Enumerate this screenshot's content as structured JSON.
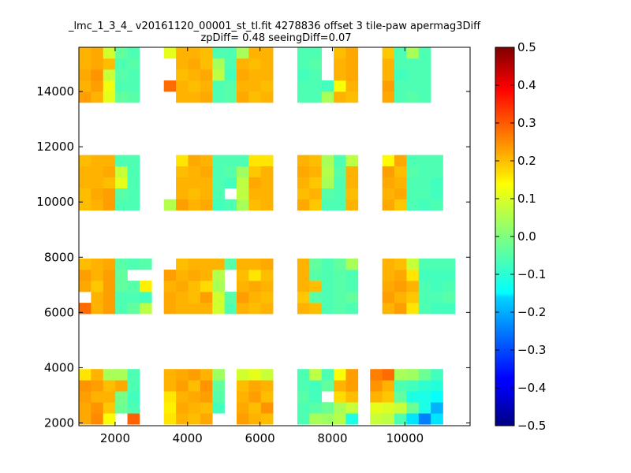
{
  "chart_data": {
    "type": "heatmap",
    "title_line1": "_lmc_1_3_4_ v20161120_00001_st_tl.fit 4278836 offset 3 tile-paw apermag3Diff",
    "title_line2": "zpDiff= 0.48 seeingDiff=0.07",
    "xlim": [
      1000,
      11800
    ],
    "ylim": [
      1900,
      15600
    ],
    "xticks": [
      2000,
      4000,
      6000,
      8000,
      10000
    ],
    "yticks": [
      2000,
      4000,
      6000,
      8000,
      10000,
      12000,
      14000
    ],
    "color_range": [
      -0.5,
      0.5
    ],
    "colorbar_ticks": [
      "0.5",
      "0.4",
      "0.3",
      "0.2",
      "0.1",
      "0.0",
      "−0.1",
      "−0.2",
      "−0.3",
      "−0.4",
      "−0.5"
    ],
    "colormap": "jet",
    "grid": false,
    "cell_width": 335,
    "cell_height": 400,
    "x_starts": [
      1000,
      1335,
      1670,
      2005,
      2340,
      2675,
      3010,
      3345,
      3680,
      4015,
      4350,
      4685,
      5020,
      5355,
      5690,
      6025,
      6360,
      6695,
      7030,
      7365,
      7700,
      8035,
      8370,
      8705,
      9040,
      9375,
      9710,
      10045,
      10380,
      10715,
      11050,
      11385
    ],
    "bands": [
      {
        "y_start": 1950,
        "values": [
          [
            0.21,
            0.24,
            0.12,
            null,
            0.28,
            null,
            0.15,
            0.2,
            0.19,
            0.21,
            null,
            null,
            0.22,
            0.2,
            0.19,
            -0.05,
            0.04,
            0.03,
            0.05,
            -0.1,
            0.07,
            0.06,
            -0.05,
            -0.15,
            -0.25,
            -0.15
          ],
          [
            0.21,
            0.23,
            0.18,
            -0.02,
            -0.05,
            null,
            0.14,
            0.21,
            0.2,
            0.19,
            -0.06,
            null,
            0.21,
            0.19,
            0.23,
            -0.05,
            -0.04,
            -0.02,
            0.04,
            0.07,
            0.1,
            0.09,
            0.07,
            -0.02,
            -0.1,
            -0.2
          ],
          [
            0.22,
            0.2,
            0.2,
            -0.01,
            -0.06,
            null,
            0.15,
            0.2,
            0.21,
            0.22,
            -0.04,
            null,
            0.2,
            0.22,
            0.19,
            -0.04,
            -0.06,
            null,
            0.16,
            0.19,
            0.2,
            0.18,
            -0.03,
            -0.1,
            -0.1,
            -0.12
          ],
          [
            0.23,
            0.22,
            0.19,
            0.21,
            -0.05,
            null,
            0.2,
            0.22,
            0.19,
            0.23,
            -0.03,
            null,
            0.19,
            0.21,
            0.2,
            -0.05,
            -0.06,
            -0.03,
            0.2,
            0.22,
            0.23,
            0.2,
            -0.05,
            -0.06,
            -0.08,
            -0.09
          ],
          [
            0.15,
            0.2,
            0.04,
            0.04,
            -0.05,
            null,
            0.2,
            0.21,
            0.22,
            0.2,
            0.03,
            null,
            0.08,
            0.1,
            0.07,
            -0.05,
            0.06,
            -0.05,
            0.12,
            0.22,
            0.25,
            0.27,
            0.04,
            0.03,
            -0.02,
            -0.06
          ]
        ]
      },
      {
        "y_start": 5950,
        "values": [
          [
            0.27,
            0.2,
            0.22,
            -0.05,
            -0.03,
            0.06,
            0.21,
            0.2,
            0.2,
            0.2,
            0.08,
            -0.05,
            0.2,
            0.19,
            0.2,
            0.2,
            0.19,
            -0.05,
            -0.04,
            -0.05,
            0.2,
            0.22,
            0.15,
            -0.05,
            -0.06,
            -0.06
          ],
          [
            null,
            0.2,
            0.22,
            -0.05,
            -0.05,
            -0.06,
            0.21,
            0.2,
            0.19,
            0.22,
            0.08,
            -0.04,
            0.22,
            0.2,
            0.19,
            0.18,
            -0.04,
            -0.05,
            -0.04,
            -0.03,
            0.22,
            0.2,
            0.18,
            -0.05,
            -0.05,
            -0.04
          ],
          [
            0.21,
            0.18,
            0.22,
            -0.03,
            -0.04,
            0.14,
            0.2,
            0.21,
            0.19,
            0.16,
            0.04,
            null,
            0.2,
            0.21,
            0.2,
            0.2,
            0.19,
            -0.05,
            -0.04,
            -0.05,
            0.21,
            0.22,
            0.2,
            -0.05,
            -0.06,
            -0.05
          ],
          [
            0.22,
            0.2,
            0.22,
            -0.03,
            null,
            null,
            0.22,
            0.2,
            0.21,
            0.2,
            0.05,
            null,
            0.19,
            0.15,
            0.19,
            0.2,
            -0.04,
            -0.05,
            -0.04,
            -0.05,
            0.2,
            0.21,
            0.15,
            -0.06,
            -0.06,
            -0.06
          ],
          [
            0.19,
            0.2,
            0.21,
            -0.04,
            -0.05,
            -0.04,
            null,
            0.19,
            0.2,
            0.2,
            0.2,
            -0.04,
            0.2,
            0.2,
            0.21,
            0.2,
            -0.03,
            -0.05,
            -0.03,
            0.04,
            0.2,
            0.19,
            0.07,
            -0.05,
            -0.05,
            -0.05
          ]
        ]
      },
      {
        "y_start": 9700,
        "values": [
          [
            0.19,
            0.2,
            0.22,
            -0.05,
            -0.05,
            0.05,
            0.22,
            0.2,
            0.21,
            -0.06,
            -0.05,
            0.04,
            0.19,
            0.2,
            0.21,
            0.18,
            -0.05,
            -0.05,
            0.2,
            0.21,
            0.18,
            -0.05,
            -0.06,
            -0.05
          ],
          [
            0.19,
            0.21,
            0.22,
            -0.04,
            -0.05,
            null,
            0.2,
            0.19,
            0.2,
            -0.05,
            null,
            0.06,
            0.2,
            0.2,
            0.19,
            0.2,
            -0.04,
            -0.05,
            0.19,
            0.2,
            0.21,
            -0.05,
            -0.05,
            -0.06
          ],
          [
            0.2,
            0.2,
            0.19,
            0.1,
            -0.05,
            null,
            0.2,
            0.2,
            0.2,
            -0.05,
            -0.06,
            0.06,
            0.21,
            0.2,
            0.2,
            0.18,
            0.04,
            -0.05,
            0.2,
            0.21,
            0.2,
            -0.05,
            -0.05,
            -0.06
          ],
          [
            0.2,
            0.2,
            0.21,
            0.07,
            -0.05,
            null,
            0.19,
            0.2,
            0.21,
            -0.05,
            -0.04,
            0.03,
            0.18,
            0.2,
            0.21,
            0.2,
            0.05,
            -0.04,
            0.2,
            0.22,
            0.19,
            -0.04,
            -0.05,
            -0.05
          ],
          [
            0.19,
            0.2,
            0.2,
            -0.05,
            -0.05,
            null,
            0.15,
            0.21,
            0.2,
            -0.05,
            -0.05,
            -0.05,
            0.15,
            0.15,
            0.2,
            0.19,
            0.04,
            -0.05,
            0.06,
            0.13,
            0.21,
            -0.05,
            -0.05,
            -0.05
          ]
        ]
      },
      {
        "y_start": 13600,
        "values": [
          [
            0.22,
            0.2,
            0.1,
            -0.03,
            -0.04,
            null,
            null,
            null,
            0.2,
            0.2,
            0.21,
            -0.05,
            -0.04,
            0.21,
            0.19,
            0.2,
            -0.05,
            -0.05,
            0.04,
            0.2,
            0.19,
            0.21,
            -0.05,
            -0.04,
            -0.05
          ],
          [
            0.2,
            0.22,
            0.11,
            -0.05,
            -0.05,
            null,
            null,
            0.27,
            0.2,
            0.19,
            0.2,
            -0.05,
            -0.04,
            0.2,
            0.2,
            0.19,
            -0.05,
            -0.05,
            -0.06,
            0.12,
            0.2,
            0.22,
            -0.05,
            -0.05,
            -0.05
          ],
          [
            0.21,
            0.23,
            0.07,
            -0.04,
            -0.05,
            null,
            null,
            null,
            0.19,
            0.2,
            0.21,
            0.06,
            -0.06,
            0.21,
            0.2,
            0.2,
            -0.06,
            -0.05,
            null,
            0.2,
            0.21,
            0.2,
            -0.06,
            -0.05,
            -0.05
          ],
          [
            0.2,
            0.21,
            0.19,
            -0.05,
            -0.04,
            null,
            null,
            null,
            0.2,
            0.21,
            0.19,
            0.04,
            -0.05,
            0.2,
            0.19,
            0.2,
            -0.05,
            -0.04,
            null,
            0.2,
            0.21,
            0.2,
            -0.05,
            -0.05,
            -0.05
          ],
          [
            0.2,
            0.21,
            0.08,
            -0.03,
            -0.05,
            null,
            null,
            0.1,
            0.2,
            0.2,
            0.19,
            -0.05,
            -0.05,
            0.04,
            0.2,
            0.2,
            -0.05,
            -0.05,
            null,
            0.19,
            0.21,
            0.18,
            -0.05,
            0.04,
            -0.05
          ]
        ]
      }
    ],
    "band_columns": [
      0,
      1,
      2,
      3,
      4,
      6,
      7,
      8,
      9,
      10,
      11,
      12,
      13,
      14,
      15,
      18,
      19,
      20,
      21,
      22,
      24,
      25,
      26,
      27,
      28,
      29
    ],
    "band_columns_b": [
      0,
      1,
      2,
      3,
      4,
      5,
      7,
      8,
      9,
      10,
      11,
      12,
      13,
      14,
      15,
      18,
      19,
      20,
      21,
      22,
      25,
      26,
      27,
      28,
      29,
      30
    ],
    "band_columns_c": [
      0,
      1,
      2,
      3,
      4,
      7,
      8,
      9,
      10,
      11,
      12,
      13,
      14,
      15,
      18,
      19,
      20,
      21,
      22,
      25,
      26,
      27,
      28,
      29
    ],
    "band_columns_d": [
      0,
      1,
      2,
      3,
      4,
      5,
      6,
      7,
      8,
      9,
      10,
      11,
      12,
      13,
      14,
      15,
      18,
      19,
      20,
      21,
      22,
      25,
      26,
      27,
      28
    ]
  }
}
